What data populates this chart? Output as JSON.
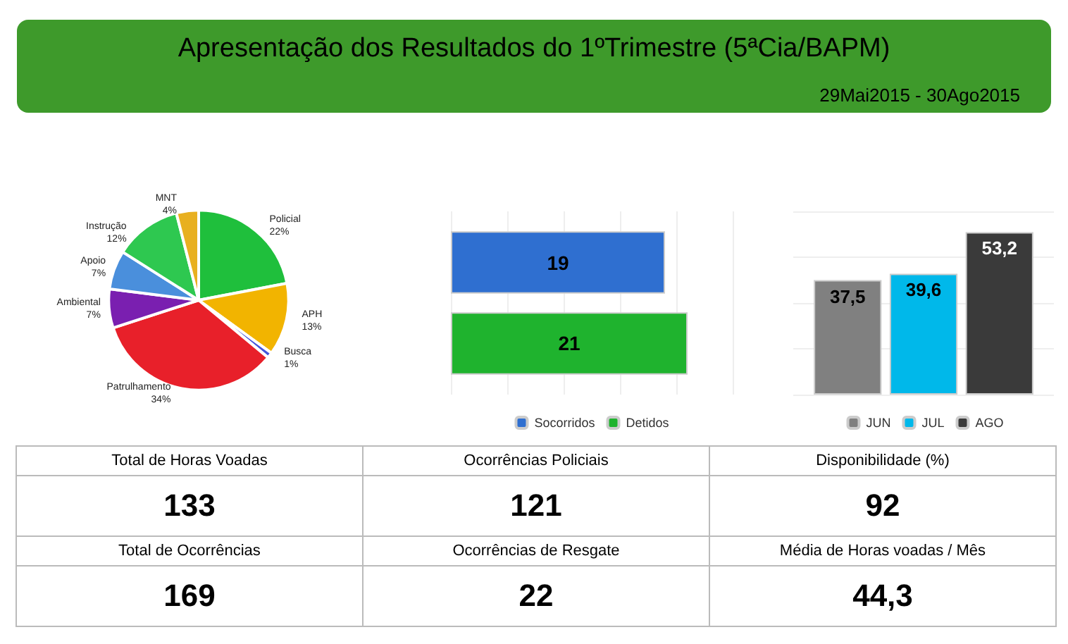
{
  "chart_data": [
    {
      "type": "other",
      "title": "Apresentação dos Resultados do 1ºTrimestre (5ªCia/BAPM)",
      "subtitle": "29Mai2015 - 30Ago2015"
    },
    {
      "type": "pie",
      "categories": [
        "Policial",
        "APH",
        "Busca",
        "Patrulhamento",
        "Ambiental",
        "Apoio",
        "Instrução",
        "MNT"
      ],
      "values": [
        22,
        13,
        1,
        34,
        7,
        7,
        12,
        4
      ],
      "colors": [
        "#1fbf3c",
        "#f2b400",
        "#4455dd",
        "#e8202a",
        "#7a1fb0",
        "#4a8fdc",
        "#2ec850",
        "#e8b020"
      ],
      "value_labels": [
        "22%",
        "13%",
        "1%",
        "34%",
        "7%",
        "7%",
        "12%",
        "4%"
      ]
    },
    {
      "type": "bar",
      "orientation": "horizontal",
      "categories": [
        null
      ],
      "series": [
        {
          "name": "Socorridos",
          "color": "#2f6fd0",
          "values": [
            19
          ]
        },
        {
          "name": "Detidos",
          "color": "#1fb32e",
          "values": [
            21
          ]
        }
      ],
      "data_labels": true,
      "legend": "bottom",
      "grid": "x",
      "tick_labels": false
    },
    {
      "type": "bar",
      "categories": [
        null
      ],
      "series": [
        {
          "name": "JUN",
          "color": "#808080",
          "values": [
            37.5
          ],
          "value_labels": [
            "37,5"
          ]
        },
        {
          "name": "JUL",
          "color": "#00b8ea",
          "values": [
            39.6
          ],
          "value_labels": [
            "39,6"
          ]
        },
        {
          "name": "AGO",
          "color": "#3a3a3a",
          "values": [
            53.2
          ],
          "value_labels": [
            "53,2"
          ]
        }
      ],
      "ylim": [
        0,
        60
      ],
      "yticks": [
        {
          "value": 0,
          "label": null
        },
        {
          "value": 15,
          "label": null
        },
        {
          "value": 30,
          "label": null
        },
        {
          "value": 45,
          "label": null
        },
        {
          "value": 60,
          "label": null
        }
      ],
      "legend": "bottom",
      "grid": "y",
      "tick_labels": false
    },
    {
      "type": "other",
      "annotations": [
        "Total de Horas Voadas",
        "133",
        "Ocorrências Policiais",
        "121",
        "Disponibilidade (%)",
        "92",
        "Total de Ocorrências",
        "169",
        "Ocorrências de Resgate",
        "22",
        "Média de Horas voadas / Mês",
        "44,3"
      ]
    }
  ]
}
